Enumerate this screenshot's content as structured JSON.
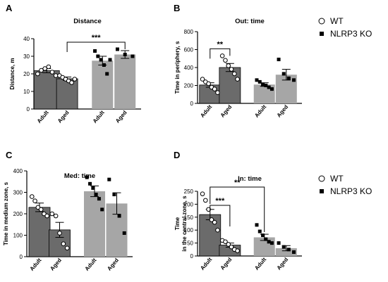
{
  "legend_top": [
    {
      "name": "WT",
      "marker": "circle"
    },
    {
      "name": "NLRP3 KO",
      "marker": "square"
    }
  ],
  "legend_bottom": [
    {
      "name": "WT",
      "marker": "circle"
    },
    {
      "name": "NLRP3 KO",
      "marker": "square"
    }
  ],
  "colors": {
    "dark_bar": "#6b6b6b",
    "light_bar": "#a6a6a6"
  },
  "chart_data": [
    {
      "panel": "A",
      "type": "bar",
      "title": "Distance",
      "ylabel": "Distance, m",
      "ylim": [
        0,
        40
      ],
      "yticks": [
        0,
        10,
        20,
        30,
        40
      ],
      "categories": [
        "Adult",
        "Aged",
        "Adult",
        "Aged"
      ],
      "series": [
        {
          "name": "WT",
          "values": [
            21.8,
            17.2,
            null,
            null
          ],
          "errors": [
            1.2,
            1.0,
            null,
            null
          ],
          "points": [
            [
              20,
              22,
              23,
              24,
              21,
              19
            ],
            [
              19,
              18,
              17,
              16,
              15,
              17
            ],
            [],
            []
          ]
        },
        {
          "name": "NLRP3 KO",
          "values": [
            null,
            null,
            27.5,
            31
          ],
          "errors": [
            null,
            null,
            2.5,
            2.2
          ],
          "points": [
            [],
            [],
            [
              33,
              30,
              28,
              25,
              20,
              28
            ],
            [
              34,
              31,
              30
            ]
          ]
        }
      ],
      "significance": [
        {
          "from": 1,
          "to": 3,
          "label": "***"
        }
      ]
    },
    {
      "panel": "B",
      "type": "bar",
      "title": "Out: time",
      "ylabel": "Time in periphery, s",
      "ylim": [
        0,
        800
      ],
      "yticks": [
        0,
        200,
        400,
        600,
        800
      ],
      "categories": [
        "Adult",
        "Aged",
        "Adult",
        "Aged"
      ],
      "series": [
        {
          "name": "WT",
          "values": [
            205,
            400,
            null,
            null
          ],
          "errors": [
            25,
            45,
            null,
            null
          ],
          "points": [
            [
              270,
              240,
              220,
              180,
              160,
              120
            ],
            [
              530,
              480,
              420,
              380,
              330,
              270
            ],
            [],
            []
          ]
        },
        {
          "name": "NLRP3 KO",
          "values": [
            null,
            null,
            210,
            320
          ],
          "errors": [
            null,
            null,
            20,
            60
          ],
          "points": [
            [],
            [],
            [
              260,
              240,
              210,
              200,
              180,
              160
            ],
            [
              490,
              330,
              280,
              260
            ]
          ]
        }
      ],
      "significance": [
        {
          "from": 0,
          "to": 1,
          "label": "**"
        }
      ]
    },
    {
      "panel": "C",
      "type": "bar",
      "title": "Med: time",
      "ylabel": "Time in medium zone, s",
      "ylim": [
        0,
        400
      ],
      "yticks": [
        0,
        100,
        200,
        300,
        400
      ],
      "categories": [
        "Adult",
        "Aged",
        "Adult",
        "Aged"
      ],
      "series": [
        {
          "name": "WT",
          "values": [
            230,
            125,
            null,
            null
          ],
          "errors": [
            20,
            35,
            null,
            null
          ],
          "points": [
            [
              280,
              260,
              230,
              220,
              200,
              190
            ],
            [
              200,
              190,
              110,
              60,
              40
            ],
            [],
            []
          ]
        },
        {
          "name": "NLRP3 KO",
          "values": [
            null,
            null,
            305,
            248
          ],
          "errors": [
            null,
            null,
            25,
            50
          ],
          "points": [
            [],
            [],
            [
              370,
              340,
              320,
              290,
              270,
              220
            ],
            [
              360,
              290,
              190,
              110
            ]
          ]
        }
      ],
      "significance": []
    },
    {
      "panel": "D",
      "type": "bar",
      "title": "In: time",
      "ylabel": "Time in the central zone, s",
      "ylim": [
        0,
        250
      ],
      "yticks": [
        0,
        50,
        100,
        150,
        200,
        250
      ],
      "categories": [
        "Adult",
        "Aged",
        "Adult",
        "Aged"
      ],
      "series": [
        {
          "name": "WT",
          "values": [
            160,
            42,
            null,
            null
          ],
          "errors": [
            20,
            8,
            null,
            null
          ],
          "points": [
            [
              240,
              215,
              180,
              140,
              130,
              100
            ],
            [
              60,
              55,
              45,
              35,
              25,
              20
            ],
            [],
            []
          ]
        },
        {
          "name": "NLRP3 KO",
          "values": [
            null,
            null,
            72,
            30
          ],
          "errors": [
            null,
            null,
            12,
            10
          ],
          "points": [
            [],
            [],
            [
              120,
              95,
              80,
              65,
              55,
              50
            ],
            [
              50,
              35,
              25,
              15
            ]
          ]
        }
      ],
      "significance": [
        {
          "from": 0,
          "to": 1,
          "label": "***"
        },
        {
          "from": 0,
          "to": 2,
          "label": "**"
        }
      ]
    }
  ]
}
